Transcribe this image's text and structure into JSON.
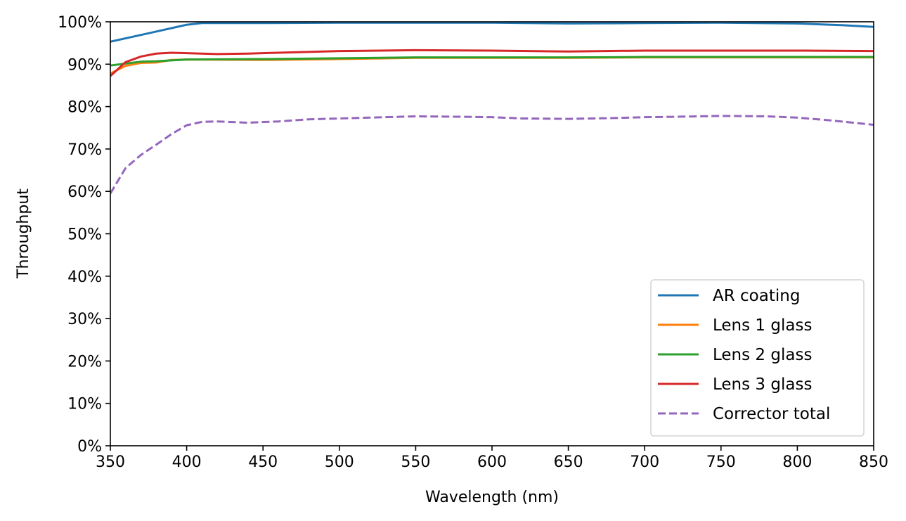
{
  "chart_data": {
    "type": "line",
    "title": "",
    "xlabel": "Wavelength (nm)",
    "ylabel": "Throughput",
    "xlim": [
      350,
      850
    ],
    "ylim": [
      0,
      100
    ],
    "xticks": [
      "350",
      "400",
      "450",
      "500",
      "550",
      "600",
      "650",
      "700",
      "750",
      "800",
      "850"
    ],
    "yticks": [
      "0%",
      "10%",
      "20%",
      "30%",
      "40%",
      "50%",
      "60%",
      "70%",
      "80%",
      "90%",
      "100%"
    ],
    "grid": false,
    "legend_position": "lower-right",
    "series": [
      {
        "name": "AR coating",
        "color": "#1f77b4",
        "dash": "solid",
        "x": [
          350,
          375,
          400,
          410,
          450,
          500,
          550,
          600,
          650,
          700,
          750,
          800,
          830,
          850
        ],
        "y": [
          95.3,
          97.3,
          99.3,
          99.7,
          99.7,
          99.8,
          99.8,
          99.8,
          99.6,
          99.7,
          99.8,
          99.6,
          99.2,
          98.8
        ]
      },
      {
        "name": "Lens 1 glass",
        "color": "#ff7f0e",
        "dash": "solid",
        "x": [
          350,
          360,
          370,
          380,
          390,
          400,
          450,
          500,
          550,
          600,
          650,
          700,
          750,
          800,
          850
        ],
        "y": [
          87.8,
          89.6,
          90.3,
          90.4,
          91.0,
          91.1,
          91.0,
          91.2,
          91.5,
          91.5,
          91.5,
          91.6,
          91.6,
          91.6,
          91.6
        ]
      },
      {
        "name": "Lens 2 glass",
        "color": "#2ca02c",
        "dash": "solid",
        "x": [
          350,
          370,
          380,
          400,
          450,
          500,
          550,
          600,
          650,
          700,
          750,
          800,
          850
        ],
        "y": [
          89.7,
          90.6,
          90.7,
          91.1,
          91.2,
          91.4,
          91.6,
          91.6,
          91.6,
          91.7,
          91.7,
          91.7,
          91.7
        ]
      },
      {
        "name": "Lens 3 glass",
        "color": "#d62728",
        "dash": "solid",
        "x": [
          350,
          360,
          370,
          380,
          390,
          400,
          420,
          440,
          460,
          500,
          550,
          600,
          650,
          700,
          750,
          800,
          850
        ],
        "y": [
          87.2,
          90.5,
          91.8,
          92.5,
          92.7,
          92.6,
          92.4,
          92.5,
          92.7,
          93.1,
          93.3,
          93.2,
          93.0,
          93.2,
          93.2,
          93.2,
          93.1
        ]
      },
      {
        "name": "Corrector total",
        "color": "#9467bd",
        "dash": "dashed",
        "x": [
          350,
          360,
          370,
          380,
          390,
          400,
          410,
          420,
          440,
          460,
          480,
          500,
          520,
          550,
          580,
          600,
          620,
          650,
          680,
          700,
          720,
          750,
          780,
          800,
          820,
          850
        ],
        "y": [
          59.5,
          65.5,
          68.6,
          71.0,
          73.5,
          75.6,
          76.4,
          76.5,
          76.2,
          76.5,
          77.0,
          77.2,
          77.4,
          77.7,
          77.6,
          77.5,
          77.2,
          77.1,
          77.3,
          77.5,
          77.6,
          77.8,
          77.7,
          77.4,
          76.8,
          75.7
        ]
      }
    ]
  }
}
